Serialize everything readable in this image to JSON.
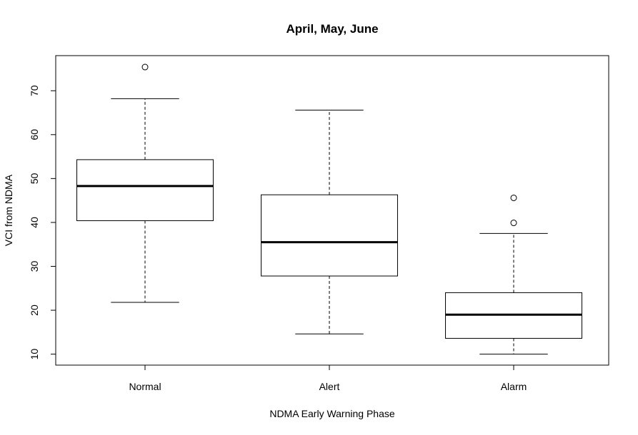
{
  "chart_data": {
    "type": "boxplot",
    "title": "April, May, June",
    "xlabel": "NDMA Early Warning Phase",
    "ylabel": "VCI from NDMA",
    "categories": [
      "Normal",
      "Alert",
      "Alarm"
    ],
    "ylim": [
      7.5,
      78
    ],
    "yticks": [
      10,
      20,
      30,
      40,
      50,
      60,
      70
    ],
    "ytick_labels": [
      "10",
      "20",
      "30",
      "40",
      "50",
      "60",
      "70"
    ],
    "boxes": [
      {
        "name": "Normal",
        "whisker_low": 21.8,
        "q1": 40.4,
        "median": 48.3,
        "q3": 54.3,
        "whisker_high": 68.2,
        "outliers": [
          75.4
        ]
      },
      {
        "name": "Alert",
        "whisker_low": 14.6,
        "q1": 27.8,
        "median": 35.5,
        "q3": 46.3,
        "whisker_high": 65.6,
        "outliers": []
      },
      {
        "name": "Alarm",
        "whisker_low": 10.0,
        "q1": 13.6,
        "median": 19.0,
        "q3": 24.0,
        "whisker_high": 37.5,
        "outliers": [
          39.9,
          45.6
        ]
      }
    ],
    "grid": false,
    "colors": {
      "stroke": "#000000",
      "box_fill": "#ffffff"
    }
  }
}
